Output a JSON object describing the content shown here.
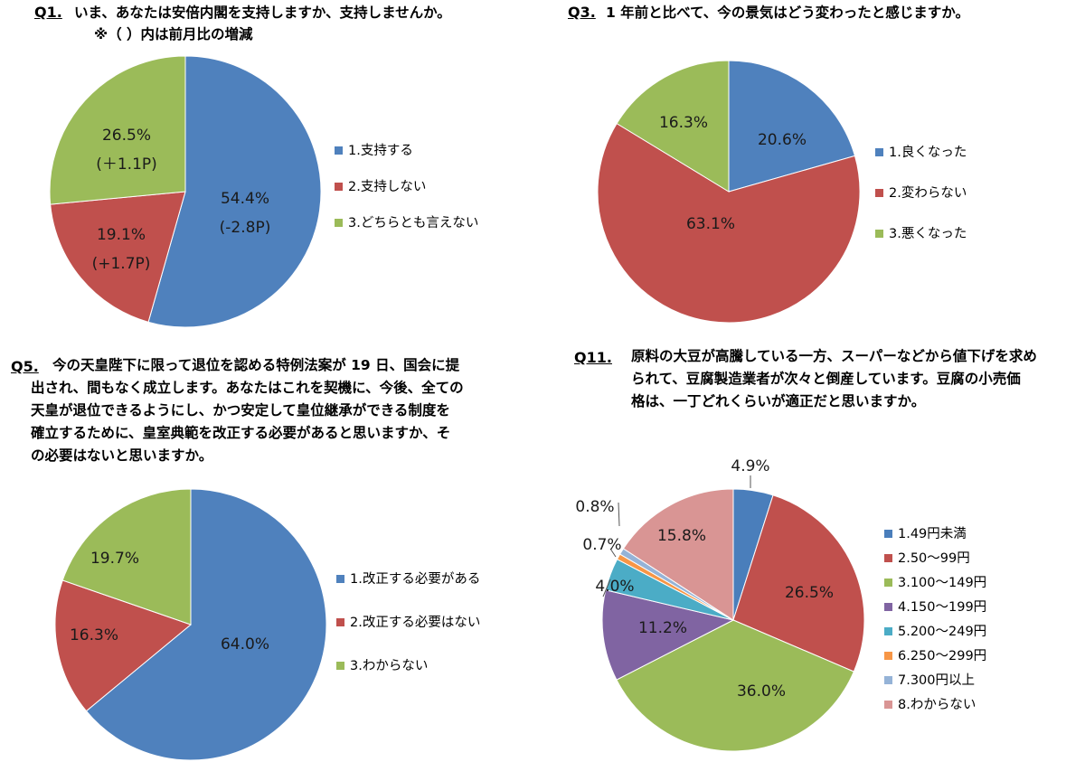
{
  "palette": {
    "blue": "#4f81bd",
    "red": "#c0504d",
    "green": "#9bbb59",
    "purple": "#8064a2",
    "teal": "#4bacc6",
    "orange": "#f79646",
    "lightblue": "#95b3d7",
    "pink": "#d99594",
    "darkblue": "#4a7ebb"
  },
  "q1": {
    "num": "Q1.",
    "text_line1": "いま、あなたは安倍内閣を支持しますか、支持しませんか。",
    "text_line2": "※（  ）内は前月比の増減"
  },
  "q3": {
    "num": "Q3.",
    "text_line1": "1 年前と比べて、今の景気はどう変わったと感じますか。"
  },
  "q5": {
    "num": "Q5.",
    "text_lines": [
      "今の天皇陛下に限って退位を認める特例法案が 19 日、国会に提",
      "出され、間もなく成立します。あなたはこれを契機に、今後、全ての",
      "天皇が退位できるようにし、かつ安定して皇位継承ができる制度を",
      "確立するために、皇室典範を改正する必要があると思いますか、そ",
      "の必要はないと思いますか。"
    ]
  },
  "q11": {
    "num": "Q11.",
    "text_lines": [
      "原料の大豆が高騰している一方、スーパーなどから値下げを求め",
      "られて、豆腐製造業者が次々と倒産しています。豆腐の小売価",
      "格は、一丁どれくらいが適正だと思いますか。"
    ]
  },
  "chart_data": [
    {
      "id": "q1",
      "type": "pie",
      "slices": [
        {
          "label": "1.支持する",
          "value": 54.4,
          "value_label": "54.4%",
          "change_label": "(-2.8P)",
          "color": "#4f81bd"
        },
        {
          "label": "2.支持しない",
          "value": 19.1,
          "value_label": "19.1%",
          "change_label": "(+1.7P)",
          "color": "#c0504d"
        },
        {
          "label": "3.どちらとも言えない",
          "value": 26.5,
          "value_label": "26.5%",
          "change_label": "(＋1.1P)",
          "color": "#9bbb59"
        }
      ]
    },
    {
      "id": "q3",
      "type": "pie",
      "slices": [
        {
          "label": "1.良くなった",
          "value": 20.6,
          "value_label": "20.6%",
          "color": "#4f81bd"
        },
        {
          "label": "2.変わらない",
          "value": 63.1,
          "value_label": "63.1%",
          "color": "#c0504d"
        },
        {
          "label": "3.悪くなった",
          "value": 16.3,
          "value_label": "16.3%",
          "color": "#9bbb59"
        }
      ]
    },
    {
      "id": "q5",
      "type": "pie",
      "slices": [
        {
          "label": "1.改正する必要がある",
          "value": 64.0,
          "value_label": "64.0%",
          "color": "#4f81bd"
        },
        {
          "label": "2.改正する必要はない",
          "value": 16.3,
          "value_label": "16.3%",
          "color": "#c0504d"
        },
        {
          "label": "3.わからない",
          "value": 19.7,
          "value_label": "19.7%",
          "color": "#9bbb59"
        }
      ]
    },
    {
      "id": "q11",
      "type": "pie",
      "slices": [
        {
          "label": "1.49円未満",
          "value": 4.9,
          "value_label": "4.9%",
          "color": "#4a7ebb"
        },
        {
          "label": "2.50～99円",
          "value": 26.5,
          "value_label": "26.5%",
          "color": "#c0504d"
        },
        {
          "label": "3.100～149円",
          "value": 36.0,
          "value_label": "36.0%",
          "color": "#9bbb59"
        },
        {
          "label": "4.150～199円",
          "value": 11.2,
          "value_label": "11.2%",
          "color": "#8064a2"
        },
        {
          "label": "5.200～249円",
          "value": 4.0,
          "value_label": "4.0%",
          "color": "#4bacc6"
        },
        {
          "label": "6.250～299円",
          "value": 0.7,
          "value_label": "0.7%",
          "color": "#f79646"
        },
        {
          "label": "7.300円以上",
          "value": 0.8,
          "value_label": "0.8%",
          "color": "#95b3d7"
        },
        {
          "label": "8.わからない",
          "value": 15.8,
          "value_label": "15.8%",
          "color": "#d99594"
        }
      ]
    }
  ]
}
